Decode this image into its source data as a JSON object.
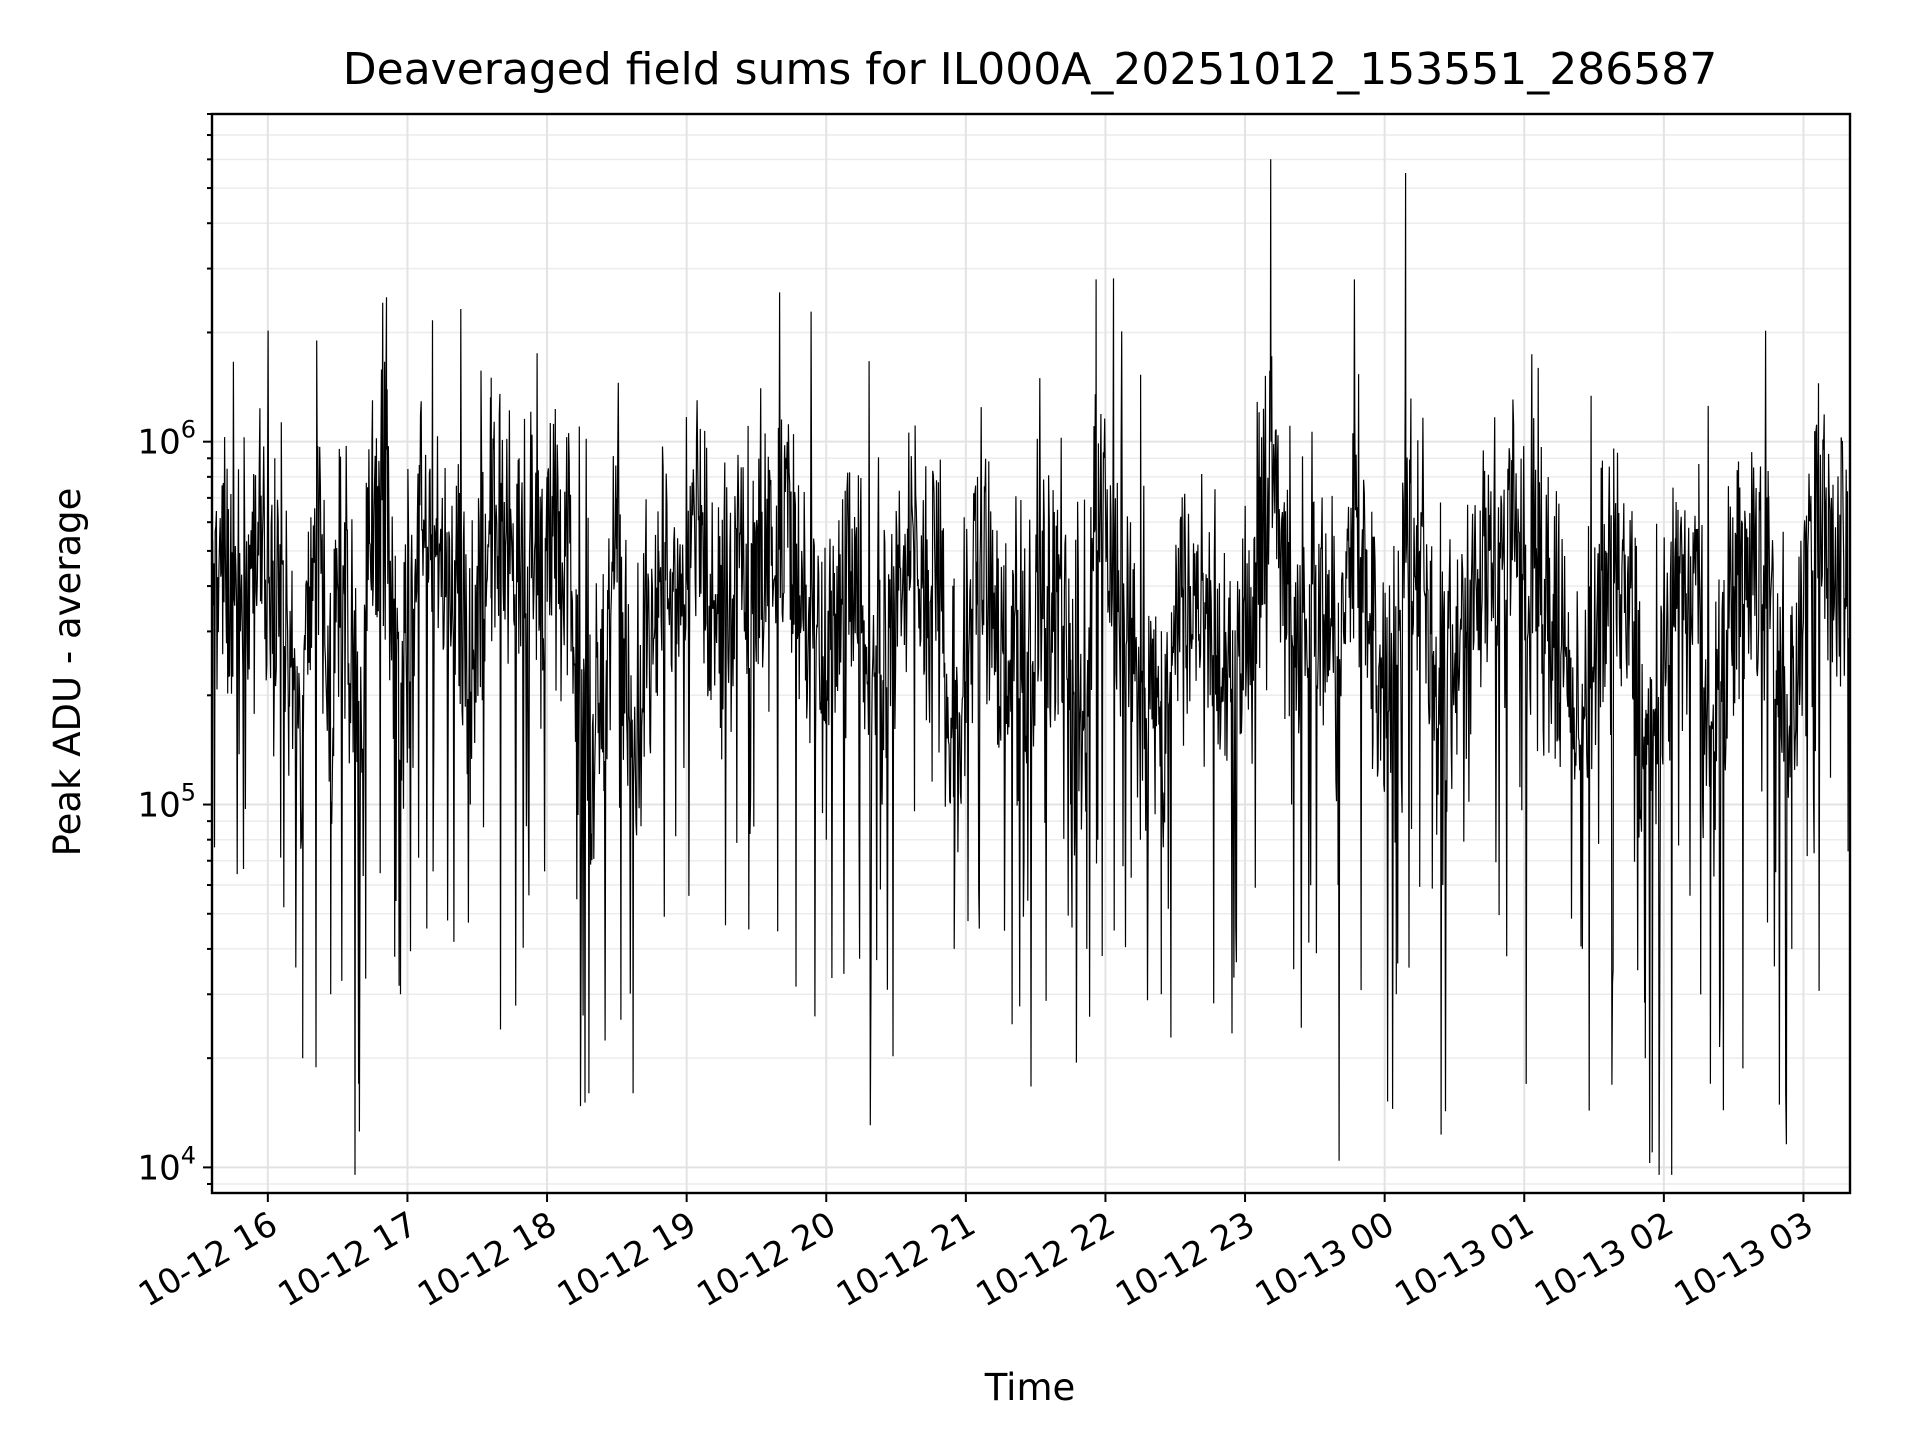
{
  "chart_data": {
    "type": "line",
    "title": "Deaveraged field sums for IL000A_20251012_153551_286587",
    "xlabel": "Time",
    "ylabel": "Peak ADU - average",
    "yscale": "log",
    "grid": true,
    "legend": "none",
    "line_color": "#000000",
    "x_range": [
      "2025-10-12 15:36",
      "2025-10-13 03:20"
    ],
    "ylim": [
      8500,
      8000000
    ],
    "x_ticks": [
      "10-12 16",
      "10-12 17",
      "10-12 18",
      "10-12 19",
      "10-12 20",
      "10-12 21",
      "10-12 22",
      "10-12 23",
      "10-13 00",
      "10-13 01",
      "10-13 02",
      "10-13 03"
    ],
    "y_ticks": [
      {
        "value": 10000,
        "base": "10",
        "exp": "4"
      },
      {
        "value": 100000,
        "base": "10",
        "exp": "5"
      },
      {
        "value": 1000000,
        "base": "10",
        "exp": "6"
      }
    ],
    "series": [
      {
        "x": [
          "2025-10-12 15:36",
          "2025-10-12 15:45",
          "2025-10-12 15:54",
          "2025-10-12 16:03",
          "2025-10-12 16:09",
          "2025-10-12 16:15",
          "2025-10-12 16:21",
          "2025-10-12 16:27",
          "2025-10-12 16:33",
          "2025-10-12 16:39",
          "2025-10-12 16:45",
          "2025-10-12 16:51",
          "2025-10-12 16:57",
          "2025-10-12 17:06",
          "2025-10-12 17:15",
          "2025-10-12 17:21",
          "2025-10-12 17:27",
          "2025-10-12 17:36",
          "2025-10-12 17:48",
          "2025-10-12 18:00",
          "2025-10-12 18:08",
          "2025-10-12 18:18",
          "2025-10-12 18:30",
          "2025-10-12 18:37",
          "2025-10-12 18:48",
          "2025-10-12 19:00",
          "2025-10-12 19:15",
          "2025-10-12 19:30",
          "2025-10-12 19:42",
          "2025-10-12 19:51",
          "2025-10-12 20:00",
          "2025-10-12 20:12",
          "2025-10-12 20:24",
          "2025-10-12 20:36",
          "2025-10-12 20:48",
          "2025-10-12 20:55",
          "2025-10-12 21:05",
          "2025-10-12 21:15",
          "2025-10-12 21:25",
          "2025-10-12 21:35",
          "2025-10-12 21:45",
          "2025-10-12 21:52",
          "2025-10-12 21:56",
          "2025-10-12 22:05",
          "2025-10-12 22:15",
          "2025-10-12 22:24",
          "2025-10-12 22:33",
          "2025-10-12 22:45",
          "2025-10-12 22:55",
          "2025-10-12 23:05",
          "2025-10-12 23:11",
          "2025-10-12 23:20",
          "2025-10-12 23:30",
          "2025-10-12 23:40",
          "2025-10-12 23:47",
          "2025-10-12 23:55",
          "2025-10-13 00:05",
          "2025-10-13 00:09",
          "2025-10-13 00:15",
          "2025-10-13 00:25",
          "2025-10-13 00:35",
          "2025-10-13 00:45",
          "2025-10-13 00:55",
          "2025-10-13 01:05",
          "2025-10-13 01:15",
          "2025-10-13 01:25",
          "2025-10-13 01:35",
          "2025-10-13 01:45",
          "2025-10-13 01:52",
          "2025-10-13 01:55",
          "2025-10-13 02:05",
          "2025-10-13 02:15",
          "2025-10-13 02:20",
          "2025-10-13 02:30",
          "2025-10-13 02:45",
          "2025-10-13 02:55",
          "2025-10-13 03:05",
          "2025-10-13 03:12",
          "2025-10-13 03:20"
        ],
        "y": [
          500000,
          300000,
          800000,
          900000,
          120000,
          20000,
          1900000,
          30000,
          600000,
          17000,
          1300000,
          2500000,
          30000,
          1000000,
          700000,
          600000,
          100000,
          1500000,
          900000,
          800000,
          600000,
          16000,
          700000,
          16000,
          500000,
          800000,
          400000,
          600000,
          900000,
          300000,
          80000,
          400000,
          100000,
          500000,
          300000,
          40000,
          800000,
          150000,
          70000,
          400000,
          100000,
          40000,
          2800000,
          400000,
          80000,
          30000,
          400000,
          200000,
          100000,
          300000,
          6000000,
          100000,
          300000,
          60000,
          2800000,
          150000,
          30000,
          5500000,
          500000,
          60000,
          300000,
          500000,
          800000,
          300000,
          150000,
          40000,
          500000,
          300000,
          20000,
          11000,
          300000,
          500000,
          17000,
          400000,
          600000,
          40000,
          600000,
          700000,
          600000
        ]
      }
    ]
  }
}
